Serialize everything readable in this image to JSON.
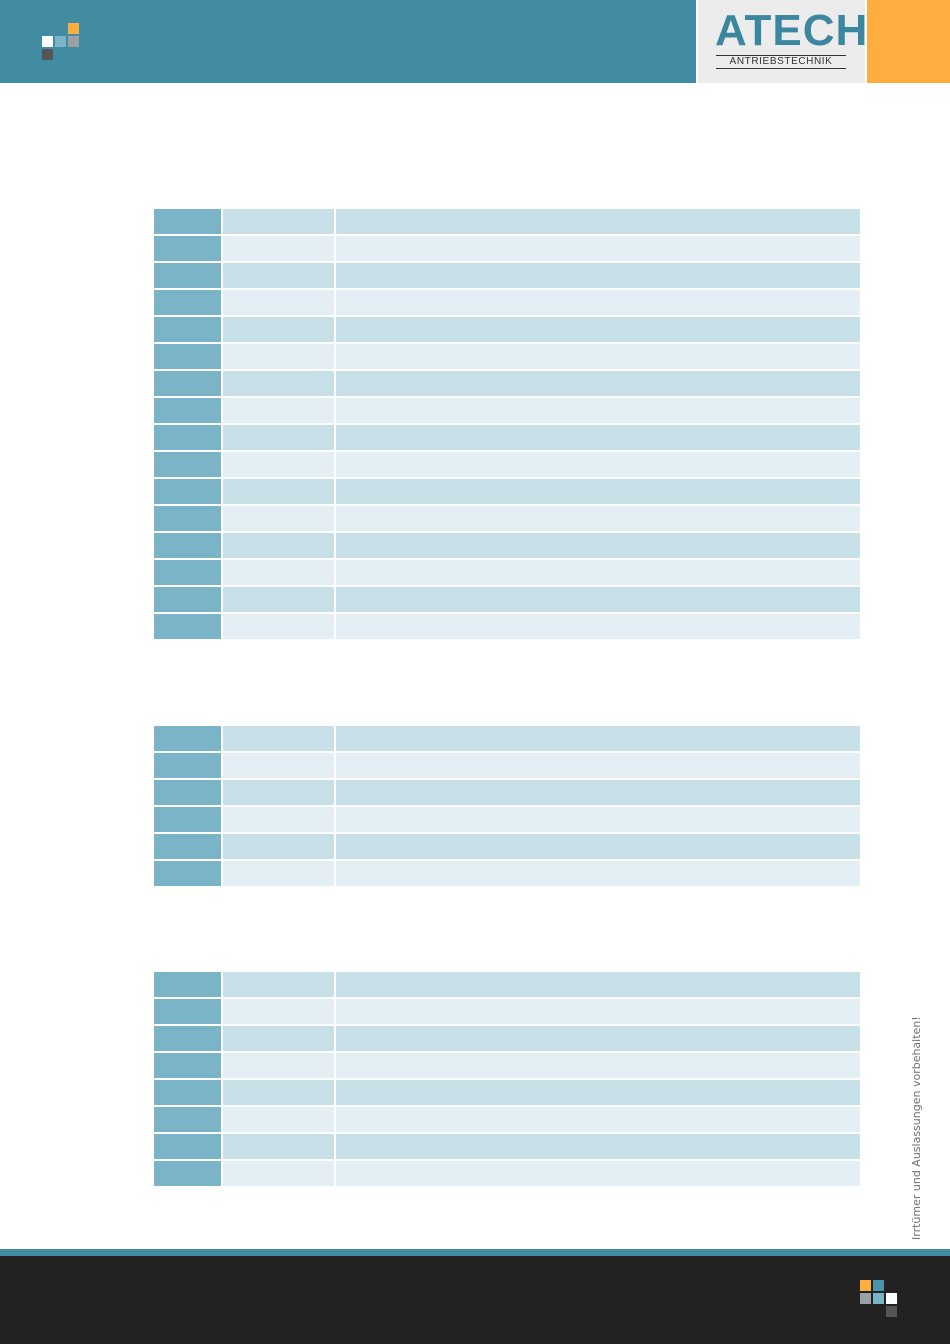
{
  "header": {
    "brand_name": "ATECH",
    "brand_subtitle": "ANTRIEBSTECHNIK",
    "colors": {
      "band": "#418ca3",
      "accent": "#fdae3f",
      "panel": "#ececec"
    }
  },
  "tables": [
    {
      "rows": 16
    },
    {
      "rows": 6
    },
    {
      "rows": 8
    }
  ],
  "side_note": "Irrtümer und Auslassungen vorbehalten!",
  "footer": {
    "colors": {
      "background": "#222222",
      "line": "#418ca3"
    }
  }
}
